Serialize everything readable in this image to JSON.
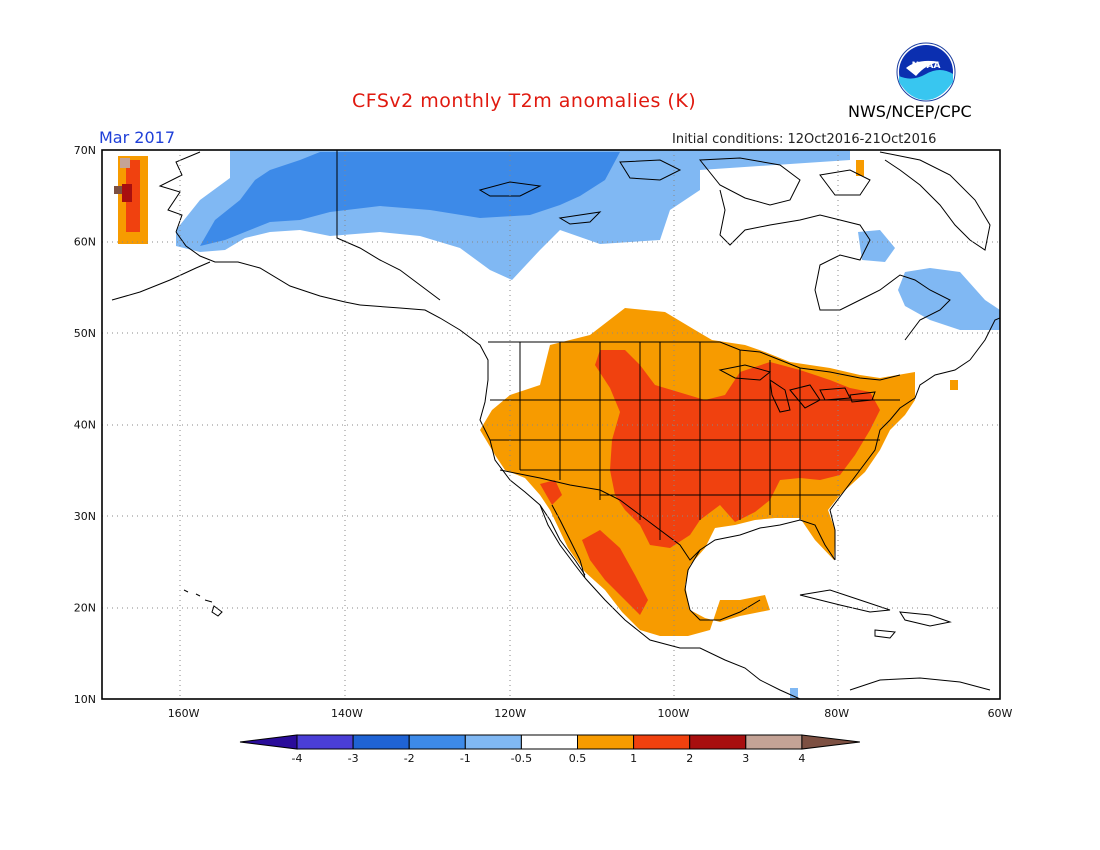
{
  "title": "CFSv2 monthly T2m anomalies (K)",
  "valid_month": "Mar 2017",
  "initial_conditions": "Initial conditions: 12Oct2016-21Oct2016",
  "agency": "NWS/NCEP/CPC",
  "logo_text": "NOAA",
  "map": {
    "lat_labels": [
      "70N",
      "60N",
      "50N",
      "40N",
      "30N",
      "20N",
      "10N"
    ],
    "lon_labels": [
      "160W",
      "140W",
      "120W",
      "100W",
      "80W",
      "60W"
    ],
    "lat_values": [
      70,
      60,
      50,
      40,
      30,
      20,
      10
    ],
    "lon_values": [
      -160,
      -140,
      -120,
      -100,
      -80,
      -60
    ],
    "extent": {
      "lon_min": -170,
      "lon_max": -60,
      "lat_min": 10,
      "lat_max": 70
    }
  },
  "colorbar": {
    "labels": [
      "-4",
      "-3",
      "-2",
      "-1",
      "-0.5",
      "0.5",
      "1",
      "2",
      "3",
      "4"
    ],
    "colors": [
      "#2a0c9a",
      "#4a3ed6",
      "#1f63d4",
      "#3d8ae8",
      "#80b8f3",
      "#ffffff",
      "#f79b00",
      "#f0410f",
      "#a80f0f",
      "#c4a396",
      "#7d5042"
    ]
  },
  "anomaly_regions": [
    {
      "name": "Alaska-Canada cold band",
      "class": "-1"
    },
    {
      "name": "Northern Canada cold core",
      "class": "-2"
    },
    {
      "name": "Labrador cold patch",
      "class": "-1"
    },
    {
      "name": "Hudson Bay east cold patch",
      "class": "-1"
    },
    {
      "name": "Contiguous US warm region",
      "class": "0.5"
    },
    {
      "name": "Central and eastern US strong warm",
      "class": "1"
    },
    {
      "name": "Mexico warm region",
      "class": "0.5"
    },
    {
      "name": "Siberia edge warm/hot pixels",
      "class": "2"
    }
  ]
}
